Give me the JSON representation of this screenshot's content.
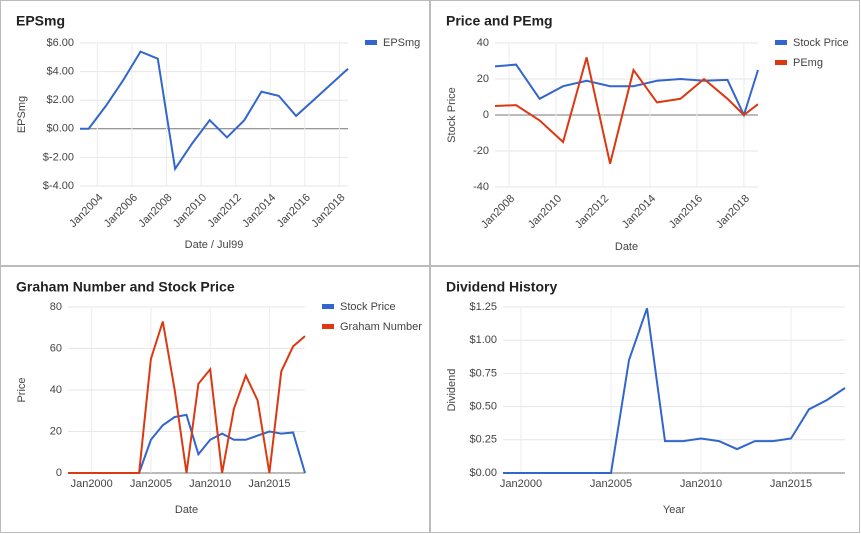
{
  "chart_data": [
    {
      "type": "line",
      "title": "EPSmg",
      "x_label": "Date / Jul99",
      "y_label": "EPSmg",
      "legend": "right",
      "grid": true,
      "x": [
        2003.0,
        2003.5,
        2004.5,
        2005.5,
        2006.5,
        2007.5,
        2008.5,
        2009.5,
        2010.5,
        2011.5,
        2012.5,
        2013.5,
        2014.5,
        2015.5,
        2016.5,
        2017.5,
        2018.5
      ],
      "series": [
        {
          "name": "EPSmg",
          "color": "#3366cc",
          "values": [
            0,
            0,
            1.6,
            3.4,
            5.4,
            4.9,
            -2.8,
            -1.0,
            0.6,
            -0.6,
            0.6,
            2.6,
            2.3,
            0.9,
            2.0,
            3.1,
            4.2
          ]
        }
      ],
      "xlim": [
        2003.0,
        2018.5
      ],
      "xticks": [
        {
          "value": 2004,
          "label": "Jan2004"
        },
        {
          "value": 2006,
          "label": "Jan2006"
        },
        {
          "value": 2008,
          "label": "Jan2008"
        },
        {
          "value": 2010,
          "label": "Jan2010"
        },
        {
          "value": 2012,
          "label": "Jan2012"
        },
        {
          "value": 2014,
          "label": "Jan2014"
        },
        {
          "value": 2016,
          "label": "Jan2016"
        },
        {
          "value": 2018,
          "label": "Jan2018"
        }
      ],
      "ylim": [
        -4,
        6
      ],
      "yticks": [
        {
          "value": -4,
          "label": "$-4.00"
        },
        {
          "value": -2,
          "label": "$-2.00"
        },
        {
          "value": 0,
          "label": "$0.00"
        },
        {
          "value": 2,
          "label": "$2.00"
        },
        {
          "value": 4,
          "label": "$4.00"
        },
        {
          "value": 6,
          "label": "$6.00"
        }
      ]
    },
    {
      "type": "line",
      "title": "Price and PEmg",
      "x_label": "Date",
      "y_label": "Stock Price",
      "legend": "right",
      "grid": true,
      "x": [
        2007.4,
        2008.3,
        2009.3,
        2010.3,
        2011.3,
        2012.3,
        2013.3,
        2014.3,
        2015.3,
        2016.3,
        2017.3,
        2018.0,
        2018.6
      ],
      "series": [
        {
          "name": "Stock Price",
          "color": "#3366cc",
          "values": [
            27,
            28,
            9,
            16,
            19,
            16,
            16,
            19,
            20,
            19,
            19.5,
            0,
            25
          ]
        },
        {
          "name": "PEmg",
          "color": "#dc3912",
          "values": [
            5,
            5.5,
            -3,
            -15,
            32,
            -27,
            25,
            7,
            9,
            20,
            9,
            0,
            6
          ]
        }
      ],
      "xlim": [
        2007.4,
        2018.6
      ],
      "xticks": [
        {
          "value": 2008,
          "label": "Jan2008"
        },
        {
          "value": 2010,
          "label": "Jan2010"
        },
        {
          "value": 2012,
          "label": "Jan2012"
        },
        {
          "value": 2014,
          "label": "Jan2014"
        },
        {
          "value": 2016,
          "label": "Jan2016"
        },
        {
          "value": 2018,
          "label": "Jan2018"
        }
      ],
      "ylim": [
        -40,
        40
      ],
      "yticks": [
        -40,
        -20,
        0,
        20,
        40
      ]
    },
    {
      "type": "line",
      "title": "Graham Number and Stock Price",
      "x_label": "Date",
      "y_label": "Price",
      "legend": "right",
      "grid": true,
      "x": [
        1998,
        1999,
        2000,
        2001,
        2002,
        2003,
        2004,
        2005,
        2006,
        2007,
        2008,
        2009,
        2010,
        2011,
        2012,
        2013,
        2014,
        2015,
        2016,
        2017,
        2018
      ],
      "series": [
        {
          "name": "Stock Price",
          "color": "#3366cc",
          "values": [
            0,
            0,
            0,
            0,
            0,
            0,
            0,
            16,
            23,
            27,
            28,
            9,
            16,
            19,
            16,
            16,
            18,
            20,
            19,
            19.5,
            0
          ]
        },
        {
          "name": "Graham Number",
          "color": "#dc3912",
          "values": [
            0,
            0,
            0,
            0,
            0,
            0,
            0,
            55,
            73,
            40,
            0,
            43,
            50,
            0,
            31,
            47,
            35,
            0,
            49,
            61,
            66
          ]
        }
      ],
      "xlim": [
        1998,
        2018
      ],
      "xticks": [
        {
          "value": 2000,
          "label": "Jan2000"
        },
        {
          "value": 2005,
          "label": "Jan2005"
        },
        {
          "value": 2010,
          "label": "Jan2010"
        },
        {
          "value": 2015,
          "label": "Jan2015"
        }
      ],
      "ylim": [
        0,
        80
      ],
      "yticks": [
        0,
        20,
        40,
        60,
        80
      ]
    },
    {
      "type": "line",
      "title": "Dividend History",
      "x_label": "Year",
      "y_label": "Dividend",
      "grid": true,
      "x": [
        1999,
        2000,
        2001,
        2002,
        2003,
        2004,
        2005,
        2006,
        2007,
        2008,
        2009,
        2010,
        2011,
        2012,
        2013,
        2014,
        2015,
        2016,
        2017,
        2018
      ],
      "values": [
        0,
        0,
        0,
        0,
        0,
        0,
        0,
        0.85,
        1.24,
        0.24,
        0.24,
        0.26,
        0.24,
        0.18,
        0.24,
        0.24,
        0.26,
        0.48,
        0.55,
        0.64
      ],
      "color": "#3366cc",
      "xlim": [
        1999,
        2018
      ],
      "xticks": [
        {
          "value": 2000,
          "label": "Jan2000"
        },
        {
          "value": 2005,
          "label": "Jan2005"
        },
        {
          "value": 2010,
          "label": "Jan2010"
        },
        {
          "value": 2015,
          "label": "Jan2015"
        }
      ],
      "ylim": [
        0,
        1.25
      ],
      "yticks": [
        {
          "value": 0,
          "label": "$0.00"
        },
        {
          "value": 0.25,
          "label": "$0.25"
        },
        {
          "value": 0.5,
          "label": "$0.50"
        },
        {
          "value": 0.75,
          "label": "$0.75"
        },
        {
          "value": 1,
          "label": "$1.00"
        },
        {
          "value": 1.25,
          "label": "$1.25"
        }
      ]
    }
  ]
}
